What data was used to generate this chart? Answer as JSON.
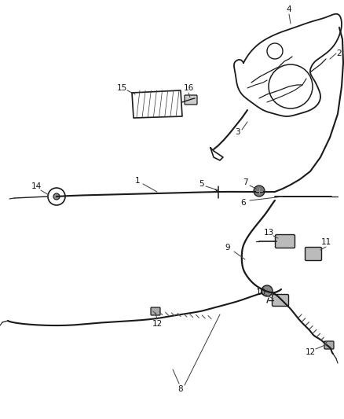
{
  "bg_color": "#ffffff",
  "fig_width": 4.38,
  "fig_height": 5.33,
  "dpi": 100,
  "line_color": "#1a1a1a",
  "gray_color": "#555555",
  "light_gray": "#aaaaaa",
  "label_color": "#111111",
  "label_fontsize": 7.5
}
